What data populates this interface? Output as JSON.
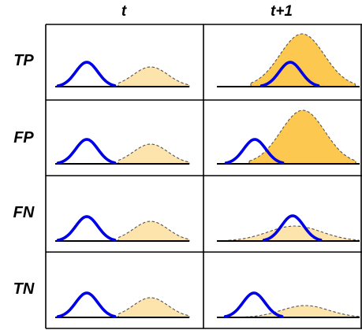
{
  "columns": [
    {
      "label": "t"
    },
    {
      "label": "t+1"
    }
  ],
  "rows": [
    {
      "label": "TP"
    },
    {
      "label": "FP"
    },
    {
      "label": "FN"
    },
    {
      "label": "TN"
    }
  ],
  "colors": {
    "blue_curve": "#0000e6",
    "orange_fill_light": "#fde3ac",
    "orange_fill_dark": "#fcc850",
    "dashed_stroke": "#555555",
    "grid": "#000000"
  }
}
